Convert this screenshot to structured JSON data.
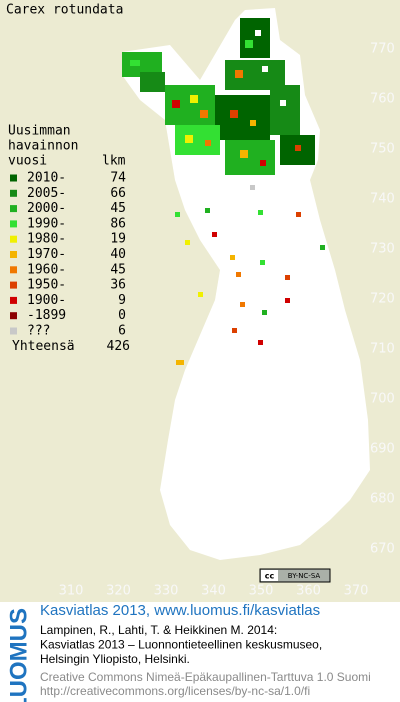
{
  "map": {
    "title": "Carex rotundata",
    "legend": {
      "heading": [
        "Uusimman",
        "havainnon",
        "vuosi"
      ],
      "count_heading": "lkm",
      "rows": [
        {
          "label": "2010-",
          "count": 74,
          "color": "#006400"
        },
        {
          "label": "2005-",
          "count": 66,
          "color": "#168a16"
        },
        {
          "label": "2000-",
          "count": 45,
          "color": "#20b020"
        },
        {
          "label": "1990-",
          "count": 86,
          "color": "#33e033"
        },
        {
          "label": "1980-",
          "count": 19,
          "color": "#f0f000"
        },
        {
          "label": "1970-",
          "count": 40,
          "color": "#f4b400"
        },
        {
          "label": "1960-",
          "count": 45,
          "color": "#f07800"
        },
        {
          "label": "1950-",
          "count": 36,
          "color": "#dc4000"
        },
        {
          "label": "1900-",
          "count": 9,
          "color": "#d00000"
        },
        {
          "label": "-1899",
          "count": 0,
          "color": "#8c0000"
        },
        {
          "label": "???",
          "count": 6,
          "color": "#c8c8c8"
        }
      ],
      "total_label": "Yhteensä",
      "total": 426
    },
    "yticks": [
      770,
      760,
      750,
      740,
      730,
      720,
      710,
      700,
      690,
      680,
      670
    ],
    "xticks": [
      310,
      320,
      330,
      340,
      350,
      360,
      370
    ],
    "license_badge": [
      "cc",
      "BY-NC-SA"
    ]
  },
  "footer": {
    "logo": "LUOMUS",
    "headline": "Kasviatlas 2013, www.luomus.fi/kasviatlas",
    "citation": [
      "Lampinen, R., Lahti, T. & Heikkinen M. 2014:",
      "Kasviatlas 2013 – Luonnontieteellinen keskusmuseo,",
      "Helsingin Yliopisto, Helsinki."
    ],
    "license": [
      "Creative Commons Nimeä-Epäkaupallinen-Tarttuva 1.0 Suomi",
      "http://creativecommons.org/licenses/by-nc-sa/1.0/fi"
    ]
  }
}
